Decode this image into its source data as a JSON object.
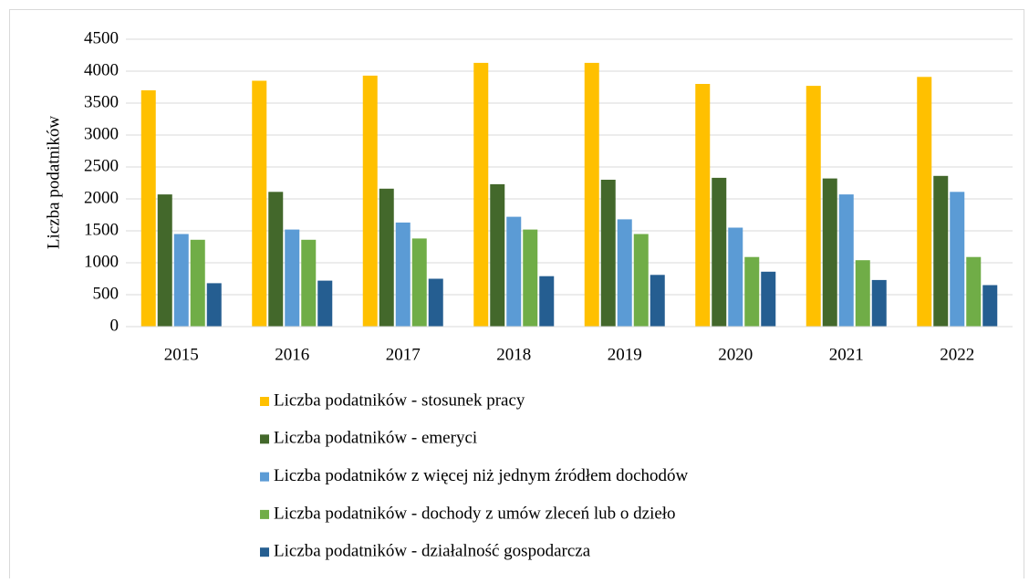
{
  "chart_data": {
    "type": "bar",
    "ylabel": "Liczba podatników",
    "categories": [
      "2015",
      "2016",
      "2017",
      "2018",
      "2019",
      "2020",
      "2021",
      "2022"
    ],
    "series": [
      {
        "name": "Liczba podatników - stosunek pracy",
        "color": "#ffc000",
        "values": [
          3700,
          3850,
          3930,
          4130,
          4130,
          3800,
          3770,
          3910
        ]
      },
      {
        "name": "Liczba podatników - emeryci",
        "color": "#43682b",
        "values": [
          2070,
          2110,
          2160,
          2230,
          2300,
          2330,
          2320,
          2360
        ]
      },
      {
        "name": "Liczba podatników z więcej niż jednym źródłem dochodów",
        "color": "#5b9bd5",
        "values": [
          1450,
          1520,
          1630,
          1720,
          1680,
          1550,
          2070,
          2110
        ]
      },
      {
        "name": "Liczba podatników - dochody z umów zleceń lub o dzieło",
        "color": "#70ad47",
        "values": [
          1360,
          1360,
          1380,
          1520,
          1450,
          1090,
          1040,
          1090
        ]
      },
      {
        "name": "Liczba podatników - działalność gospodarcza",
        "color": "#255e91",
        "values": [
          680,
          720,
          750,
          790,
          810,
          860,
          730,
          650
        ]
      }
    ],
    "ylim": [
      0,
      4500
    ],
    "yticks": [
      0,
      500,
      1000,
      1500,
      2000,
      2500,
      3000,
      3500,
      4000,
      4500
    ],
    "grid": true,
    "legend": "bottom"
  }
}
